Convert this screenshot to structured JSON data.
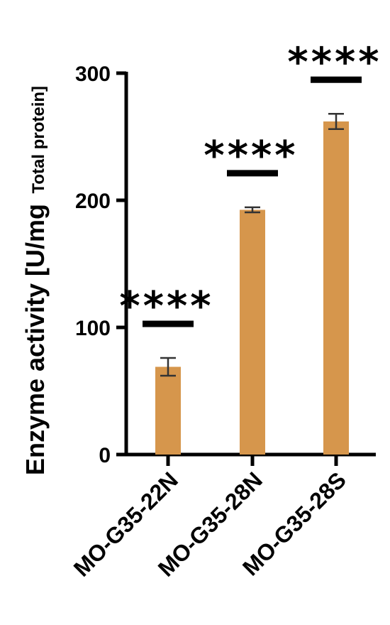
{
  "chart_data": {
    "type": "bar",
    "categories": [
      "MO-G35-22N",
      "MO-G35-28N",
      "MO-G35-28S"
    ],
    "values": [
      69,
      192.5,
      262
    ],
    "errors": [
      7,
      2,
      6
    ],
    "significance": [
      "****",
      "****",
      "****"
    ],
    "ylabel": "Enzyme activity  [U/mg",
    "ylabel_sub": "Total protein]",
    "ylim": [
      0,
      300
    ],
    "yticks": [
      0,
      100,
      200,
      300
    ],
    "bar_color": "#D6964C",
    "error_color": "#333333",
    "grid": false,
    "legend": "none"
  }
}
